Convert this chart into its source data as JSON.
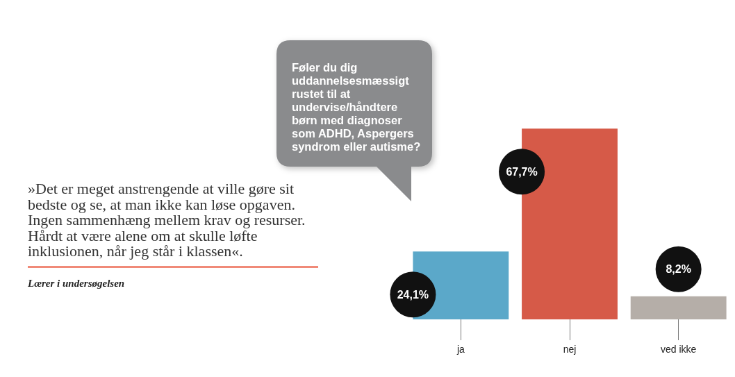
{
  "chart_data": {
    "type": "bar",
    "title": "Føler du dig uddannelsesmæssigt rustet til at undervise/håndtere børn med diagnoser som ADHD, Aspergers syndrom eller autisme?",
    "annotations": [
      "»Det er meget anstrengende at ville gøre sit bedste og se, at man ikke kan løse opgaven. Ingen sammenhæng mellem krav og resurser. Hårdt at være alene om at skulle løfte inklusionen, når jeg står i klassen«.",
      "Lærer i undersøgelsen"
    ],
    "categories": [
      "ja",
      "nej",
      "ved ikke"
    ],
    "values": [
      24.1,
      67.7,
      8.2
    ],
    "value_labels": [
      "24,1%",
      "67,7%",
      "8,2%"
    ],
    "colors": [
      "#5ba8c9",
      "#d65a48",
      "#b5aea8"
    ],
    "tick_labels": "x"
  }
}
